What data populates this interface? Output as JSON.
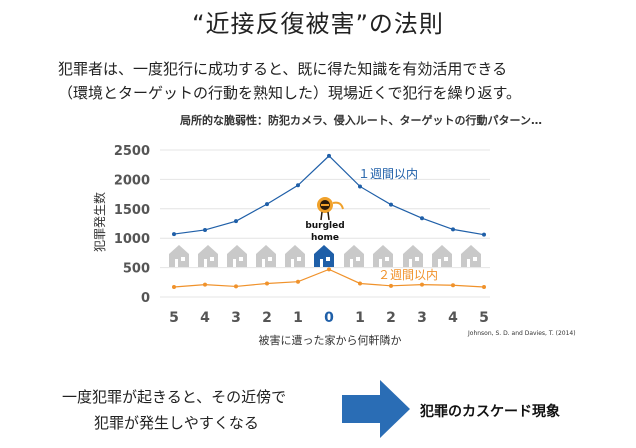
{
  "title": "“近接反復被害”の法則",
  "description": {
    "line1": "犯罪者は、一度犯行に成功すると、既に得た知識を有効活用できる",
    "line2": "（環境とターゲットの行動を熟知した）現場近くで犯行を繰り返す。"
  },
  "subtitle": "局所的な脆弱性：防犯カメラ、侵入ルート、ターゲットの行動パターン…",
  "chart_data": {
    "type": "line",
    "categories": [
      "5",
      "4",
      "3",
      "2",
      "1",
      "0",
      "1",
      "2",
      "3",
      "4",
      "5"
    ],
    "ylabel": "犯罪発生数",
    "xlabel": "被害に遭った家から何軒隣か",
    "ylim": [
      0,
      2500
    ],
    "yticks": [
      "0",
      "500",
      "1000",
      "1500",
      "2000",
      "2500"
    ],
    "series": [
      {
        "name": "１週間以内",
        "color": "#1f5fa8",
        "values": [
          1070,
          1140,
          1290,
          1580,
          1900,
          2400,
          1880,
          1570,
          1340,
          1150,
          1060
        ]
      },
      {
        "name": "２週間以内",
        "color": "#f0922b",
        "values": [
          170,
          210,
          180,
          230,
          260,
          470,
          230,
          190,
          210,
          200,
          170
        ]
      }
    ],
    "center_label": [
      "burgled",
      "home"
    ],
    "grid": true
  },
  "citation": "Johnson, S. D. and Davies, T. (2014)",
  "bottom": {
    "line1": "一度犯罪が起きると、その近傍で",
    "line2": "犯罪が発生しやすくなる",
    "result": "犯罪のカスケード現象"
  },
  "colors": {
    "blue": "#1f5fa8",
    "orange": "#f0922b",
    "house_gray": "#c9c9c9",
    "arrow": "#2a6db5"
  },
  "icons": {
    "house": "house-icon",
    "burglar": "burglar-icon",
    "arrow": "right-arrow-icon"
  }
}
